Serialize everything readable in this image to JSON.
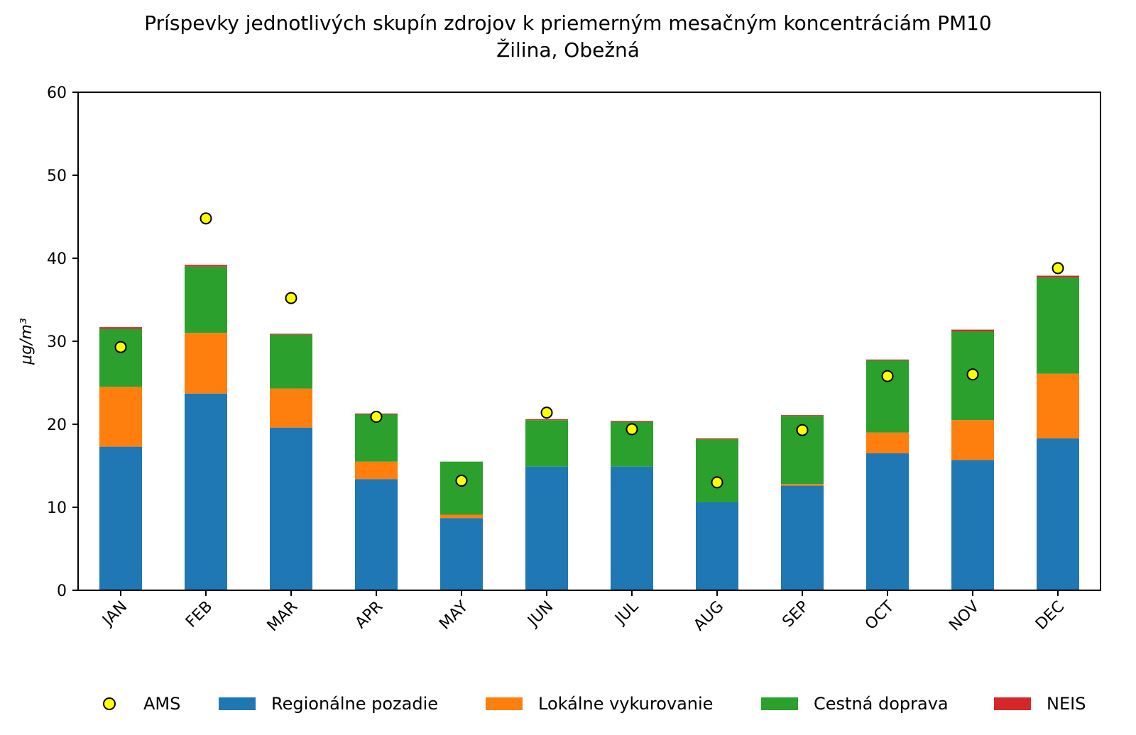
{
  "chart_data": {
    "type": "bar",
    "stacked": true,
    "title": "Príspevky jednotlivých skupín zdrojov k priemerným mesačným koncentráciám PM10",
    "subtitle": "Žilina, Obežná",
    "xlabel": "",
    "ylabel": "μg/m³",
    "ylim": [
      0,
      60
    ],
    "yticks": [
      0,
      10,
      20,
      30,
      40,
      50,
      60
    ],
    "grid": false,
    "legend_position": "bottom",
    "categories": [
      "JAN",
      "FEB",
      "MAR",
      "APR",
      "MAY",
      "JUN",
      "JUL",
      "AUG",
      "SEP",
      "OCT",
      "NOV",
      "DEC"
    ],
    "series": [
      {
        "name": "Regionálne pozadie",
        "color": "#1f77b4",
        "values": [
          17.3,
          23.7,
          19.6,
          13.4,
          8.7,
          14.9,
          14.9,
          10.6,
          12.6,
          16.5,
          15.7,
          18.3
        ]
      },
      {
        "name": "Lokálne vykurovanie",
        "color": "#ff7f0e",
        "values": [
          7.2,
          7.3,
          4.7,
          2.1,
          0.4,
          0.0,
          0.0,
          0.0,
          0.2,
          2.5,
          4.8,
          7.8
        ]
      },
      {
        "name": "Cestná doprava",
        "color": "#2ca02c",
        "values": [
          7.0,
          8.0,
          6.5,
          5.7,
          6.4,
          5.6,
          5.4,
          7.6,
          8.2,
          8.7,
          10.7,
          11.6
        ]
      },
      {
        "name": "NEIS",
        "color": "#d62728",
        "values": [
          0.2,
          0.2,
          0.1,
          0.1,
          0.0,
          0.1,
          0.1,
          0.1,
          0.1,
          0.1,
          0.2,
          0.2
        ]
      }
    ],
    "markers": {
      "name": "AMS",
      "color": "#ffff00",
      "values": [
        29.3,
        44.8,
        35.2,
        20.9,
        13.2,
        21.4,
        19.4,
        13.0,
        19.3,
        25.8,
        26.0,
        38.8
      ]
    },
    "legend_order": [
      "AMS",
      "Regionálne pozadie",
      "Lokálne vykurovanie",
      "Cestná doprava",
      "NEIS"
    ]
  }
}
